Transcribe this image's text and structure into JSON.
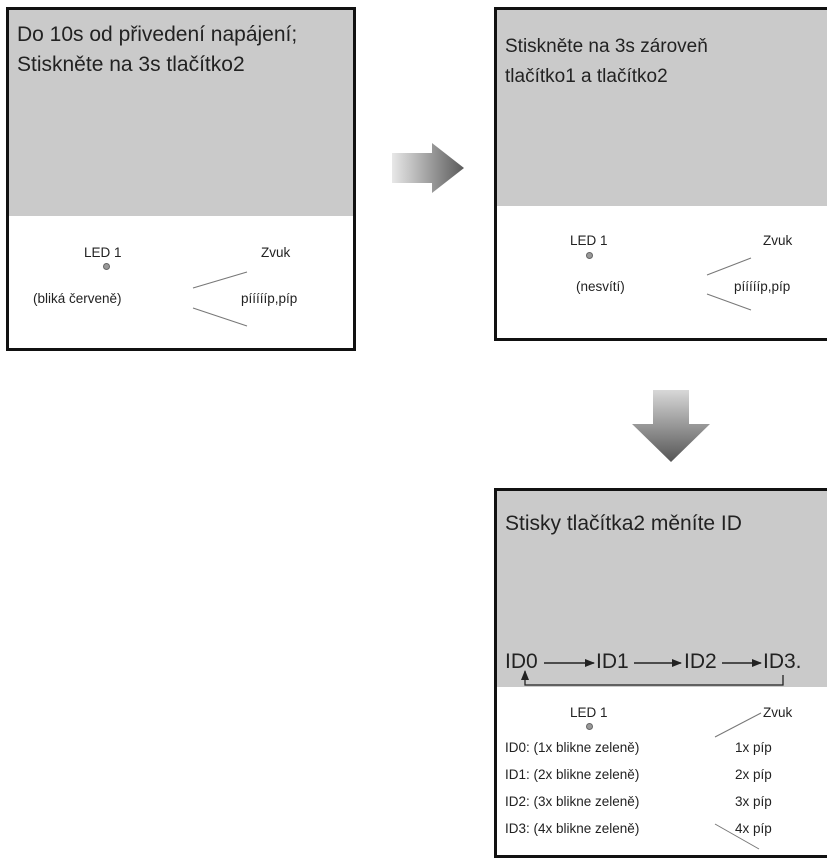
{
  "panel1": {
    "title": "Do 10s od přivedení napájení;\nStiskněte na 3s tlačítko2",
    "led_label": "LED 1",
    "led_state": "(bliká červeně)",
    "sound_label": "Zvuk",
    "sound_value": "píííííp,píp"
  },
  "panel2": {
    "title": "Stiskněte na 3s zároveň\ntlačítko1 a tlačítko2",
    "led_label": "LED 1",
    "led_state": "(nesvítí)",
    "sound_label": "Zvuk",
    "sound_value": "píííííp,píp"
  },
  "panel3": {
    "title": "Stisky tlačítka2 měníte ID",
    "sequence": [
      "ID0",
      "ID1",
      "ID2",
      "ID3."
    ],
    "led_label": "LED 1",
    "sound_label": "Zvuk",
    "rows": [
      {
        "led": "ID0: (1x blikne zeleně)",
        "sound": "1x píp"
      },
      {
        "led": "ID1: (2x blikne zeleně)",
        "sound": "2x píp"
      },
      {
        "led": "ID2: (3x blikne zeleně)",
        "sound": "3x píp"
      },
      {
        "led": "ID3: (4x blikne zeleně)",
        "sound": "4x píp"
      }
    ]
  },
  "colors": {
    "panel_gray": "#cacaca",
    "arrow_gray": "#6e6e6e",
    "led_gray": "#999999"
  }
}
